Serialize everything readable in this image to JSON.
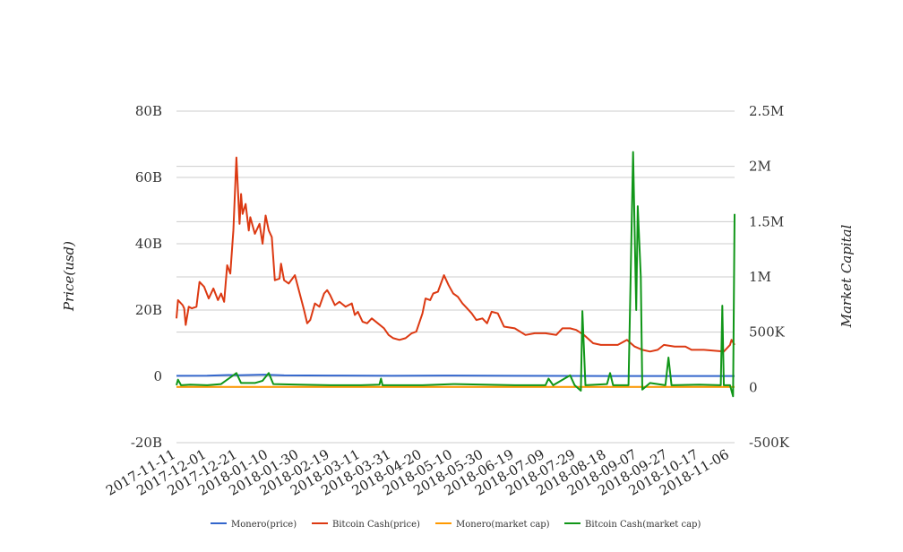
{
  "chart_data": {
    "type": "line",
    "y_left": {
      "label": "Price(usd)",
      "range": [
        -20000000000,
        80000000000
      ],
      "ticks": [
        -20000000000,
        0,
        20000000000,
        40000000000,
        60000000000,
        80000000000
      ],
      "tick_labels": [
        "-20B",
        "0",
        "20B",
        "40B",
        "60B",
        "80B"
      ]
    },
    "y_right": {
      "label": "Market Capital",
      "range": [
        -500000,
        2500000
      ],
      "ticks": [
        -500000,
        0,
        500000,
        1000000,
        1500000,
        2000000,
        2500000
      ],
      "tick_labels": [
        "-500K",
        "0",
        "500K",
        "1M",
        "1.5M",
        "2M",
        "2.5M"
      ]
    },
    "x_axis": {
      "start": "2017-11-11",
      "end": "2018-11-09",
      "tick_labels": [
        "2017-11-11",
        "2017-12-01",
        "2017-12-21",
        "2018-01-10",
        "2018-01-30",
        "2018-02-19",
        "2018-03-11",
        "2018-03-31",
        "2018-04-20",
        "2018-05-10",
        "2018-05-30",
        "2018-06-19",
        "2018-07-09",
        "2018-07-29",
        "2018-08-18",
        "2018-09-07",
        "2018-09-27",
        "2018-10-17",
        "2018-11-06"
      ]
    },
    "grid": true,
    "legend_position": "bottom",
    "series": [
      {
        "name": "Monero(price)",
        "axis": "left",
        "color": "#3366cc",
        "points": [
          [
            "2017-11-11",
            150000000
          ],
          [
            "2017-12-01",
            200000000
          ],
          [
            "2017-12-15",
            400000000
          ],
          [
            "2017-12-21",
            350000000
          ],
          [
            "2018-01-07",
            500000000
          ],
          [
            "2018-01-20",
            300000000
          ],
          [
            "2018-02-19",
            250000000
          ],
          [
            "2018-03-31",
            150000000
          ],
          [
            "2018-05-03",
            250000000
          ],
          [
            "2018-06-19",
            150000000
          ],
          [
            "2018-08-18",
            100000000
          ],
          [
            "2018-10-17",
            100000000
          ],
          [
            "2018-11-09",
            100000000
          ]
        ]
      },
      {
        "name": "Bitcoin Cash(price)",
        "axis": "left",
        "color": "#dc3912",
        "points": [
          [
            "2017-11-11",
            17500000000
          ],
          [
            "2017-11-12",
            23000000000
          ],
          [
            "2017-11-15",
            21500000000
          ],
          [
            "2017-11-16",
            20500000000
          ],
          [
            "2017-11-17",
            15500000000
          ],
          [
            "2017-11-19",
            21000000000
          ],
          [
            "2017-11-21",
            20500000000
          ],
          [
            "2017-11-24",
            21000000000
          ],
          [
            "2017-11-26",
            28500000000
          ],
          [
            "2017-11-29",
            27000000000
          ],
          [
            "2017-12-02",
            23500000000
          ],
          [
            "2017-12-05",
            26500000000
          ],
          [
            "2017-12-08",
            23000000000
          ],
          [
            "2017-12-10",
            25000000000
          ],
          [
            "2017-12-12",
            22500000000
          ],
          [
            "2017-12-14",
            33500000000
          ],
          [
            "2017-12-16",
            31000000000
          ],
          [
            "2017-12-18",
            44000000000
          ],
          [
            "2017-12-20",
            66000000000
          ],
          [
            "2017-12-22",
            46000000000
          ],
          [
            "2017-12-23",
            55000000000
          ],
          [
            "2017-12-24",
            49000000000
          ],
          [
            "2017-12-26",
            52000000000
          ],
          [
            "2017-12-28",
            44000000000
          ],
          [
            "2017-12-29",
            48000000000
          ],
          [
            "2018-01-01",
            43000000000
          ],
          [
            "2018-01-04",
            46000000000
          ],
          [
            "2018-01-06",
            40000000000
          ],
          [
            "2018-01-08",
            48500000000
          ],
          [
            "2018-01-10",
            44000000000
          ],
          [
            "2018-01-12",
            42000000000
          ],
          [
            "2018-01-14",
            29000000000
          ],
          [
            "2018-01-17",
            29500000000
          ],
          [
            "2018-01-18",
            34000000000
          ],
          [
            "2018-01-20",
            29000000000
          ],
          [
            "2018-01-23",
            28000000000
          ],
          [
            "2018-01-27",
            30500000000
          ],
          [
            "2018-01-29",
            27000000000
          ],
          [
            "2018-02-02",
            20000000000
          ],
          [
            "2018-02-04",
            16000000000
          ],
          [
            "2018-02-06",
            17000000000
          ],
          [
            "2018-02-09",
            22000000000
          ],
          [
            "2018-02-12",
            21000000000
          ],
          [
            "2018-02-15",
            25000000000
          ],
          [
            "2018-02-17",
            26000000000
          ],
          [
            "2018-02-19",
            24500000000
          ],
          [
            "2018-02-22",
            21500000000
          ],
          [
            "2018-02-25",
            22500000000
          ],
          [
            "2018-03-01",
            21000000000
          ],
          [
            "2018-03-05",
            22000000000
          ],
          [
            "2018-03-07",
            18500000000
          ],
          [
            "2018-03-09",
            19500000000
          ],
          [
            "2018-03-12",
            16500000000
          ],
          [
            "2018-03-15",
            16000000000
          ],
          [
            "2018-03-18",
            17500000000
          ],
          [
            "2018-03-22",
            16000000000
          ],
          [
            "2018-03-26",
            14500000000
          ],
          [
            "2018-03-29",
            12500000000
          ],
          [
            "2018-04-01",
            11500000000
          ],
          [
            "2018-04-05",
            11000000000
          ],
          [
            "2018-04-09",
            11500000000
          ],
          [
            "2018-04-13",
            13000000000
          ],
          [
            "2018-04-16",
            13500000000
          ],
          [
            "2018-04-20",
            19000000000
          ],
          [
            "2018-04-22",
            23500000000
          ],
          [
            "2018-04-25",
            23000000000
          ],
          [
            "2018-04-27",
            25000000000
          ],
          [
            "2018-04-30",
            25500000000
          ],
          [
            "2018-05-04",
            30500000000
          ],
          [
            "2018-05-07",
            27500000000
          ],
          [
            "2018-05-10",
            25000000000
          ],
          [
            "2018-05-13",
            24000000000
          ],
          [
            "2018-05-16",
            22000000000
          ],
          [
            "2018-05-19",
            20500000000
          ],
          [
            "2018-05-22",
            19000000000
          ],
          [
            "2018-05-25",
            17000000000
          ],
          [
            "2018-05-29",
            17500000000
          ],
          [
            "2018-06-01",
            16000000000
          ],
          [
            "2018-06-04",
            19500000000
          ],
          [
            "2018-06-08",
            19000000000
          ],
          [
            "2018-06-12",
            15000000000
          ],
          [
            "2018-06-19",
            14500000000
          ],
          [
            "2018-06-26",
            12500000000
          ],
          [
            "2018-07-02",
            13000000000
          ],
          [
            "2018-07-09",
            13000000000
          ],
          [
            "2018-07-16",
            12500000000
          ],
          [
            "2018-07-20",
            14500000000
          ],
          [
            "2018-07-25",
            14500000000
          ],
          [
            "2018-07-29",
            14000000000
          ],
          [
            "2018-08-03",
            12500000000
          ],
          [
            "2018-08-09",
            10000000000
          ],
          [
            "2018-08-14",
            9500000000
          ],
          [
            "2018-08-18",
            9500000000
          ],
          [
            "2018-08-25",
            9500000000
          ],
          [
            "2018-08-31",
            11000000000
          ],
          [
            "2018-09-05",
            9000000000
          ],
          [
            "2018-09-10",
            8000000000
          ],
          [
            "2018-09-15",
            7500000000
          ],
          [
            "2018-09-20",
            8000000000
          ],
          [
            "2018-09-24",
            9500000000
          ],
          [
            "2018-10-01",
            9000000000
          ],
          [
            "2018-10-08",
            9000000000
          ],
          [
            "2018-10-12",
            8000000000
          ],
          [
            "2018-10-20",
            8000000000
          ],
          [
            "2018-11-02",
            7500000000
          ],
          [
            "2018-11-06",
            9500000000
          ],
          [
            "2018-11-07",
            11000000000
          ],
          [
            "2018-11-09",
            9500000000
          ]
        ]
      },
      {
        "name": "Monero(market cap)",
        "axis": "right",
        "color": "#ff9900",
        "points": [
          [
            "2017-11-11",
            4000
          ],
          [
            "2018-11-09",
            4000
          ]
        ]
      },
      {
        "name": "Bitcoin Cash(market cap)",
        "axis": "right",
        "color": "#109618",
        "points": [
          [
            "2017-11-11",
            20000
          ],
          [
            "2017-11-12",
            70000
          ],
          [
            "2017-11-14",
            20000
          ],
          [
            "2017-11-20",
            25000
          ],
          [
            "2017-12-01",
            20000
          ],
          [
            "2017-12-10",
            30000
          ],
          [
            "2017-12-20",
            130000
          ],
          [
            "2017-12-23",
            40000
          ],
          [
            "2018-01-01",
            40000
          ],
          [
            "2018-01-06",
            60000
          ],
          [
            "2018-01-10",
            130000
          ],
          [
            "2018-01-13",
            30000
          ],
          [
            "2018-01-30",
            25000
          ],
          [
            "2018-02-19",
            20000
          ],
          [
            "2018-03-11",
            20000
          ],
          [
            "2018-03-23",
            25000
          ],
          [
            "2018-03-24",
            80000
          ],
          [
            "2018-03-25",
            20000
          ],
          [
            "2018-04-20",
            20000
          ],
          [
            "2018-05-10",
            30000
          ],
          [
            "2018-06-19",
            20000
          ],
          [
            "2018-07-09",
            20000
          ],
          [
            "2018-07-11",
            80000
          ],
          [
            "2018-07-14",
            20000
          ],
          [
            "2018-07-25",
            110000
          ],
          [
            "2018-07-28",
            20000
          ],
          [
            "2018-08-01",
            -30000
          ],
          [
            "2018-08-02",
            690000
          ],
          [
            "2018-08-04",
            20000
          ],
          [
            "2018-08-18",
            30000
          ],
          [
            "2018-08-20",
            130000
          ],
          [
            "2018-08-22",
            20000
          ],
          [
            "2018-09-01",
            20000
          ],
          [
            "2018-09-04",
            2130000
          ],
          [
            "2018-09-06",
            700000
          ],
          [
            "2018-09-07",
            1640000
          ],
          [
            "2018-09-09",
            1000000
          ],
          [
            "2018-09-10",
            -20000
          ],
          [
            "2018-09-15",
            40000
          ],
          [
            "2018-09-25",
            20000
          ],
          [
            "2018-09-27",
            270000
          ],
          [
            "2018-09-29",
            20000
          ],
          [
            "2018-10-17",
            25000
          ],
          [
            "2018-10-31",
            20000
          ],
          [
            "2018-11-01",
            740000
          ],
          [
            "2018-11-02",
            20000
          ],
          [
            "2018-11-06",
            20000
          ],
          [
            "2018-11-08",
            -80000
          ],
          [
            "2018-11-09",
            1570000
          ]
        ]
      }
    ]
  }
}
